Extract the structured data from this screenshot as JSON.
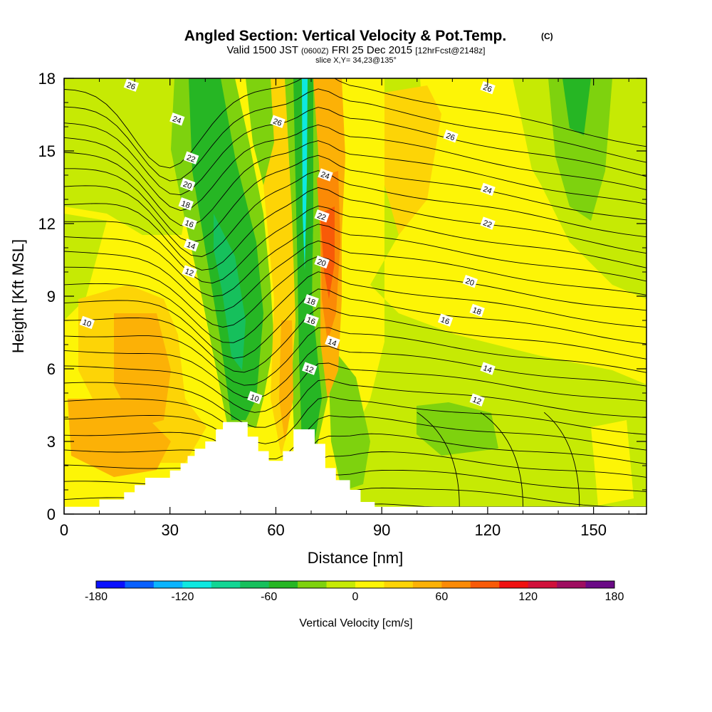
{
  "header": {
    "title": "Angled Section: Vertical Velocity & Pot.Temp.",
    "title_suffix": "(C)",
    "valid_prefix": "Valid 1500 JST",
    "valid_utc": "(0600Z)",
    "valid_date": "FRI 25 Dec 2015",
    "forecast": "[12hrFcst@2148z]",
    "slice": "slice X,Y= 34,23@135°"
  },
  "chart_data": {
    "type": "heatmap",
    "xlabel": "Distance [nm]",
    "ylabel": "Height [Kft MSL]",
    "xlim": [
      0,
      165
    ],
    "ylim": [
      0,
      18
    ],
    "x_ticks": [
      0,
      30,
      60,
      90,
      120,
      150
    ],
    "x_tick_labels": [
      "0",
      "30",
      "60",
      "90",
      "120",
      "150"
    ],
    "y_ticks": [
      0,
      3,
      6,
      9,
      12,
      15,
      18
    ],
    "y_tick_labels": [
      "0",
      "3",
      "6",
      "9",
      "12",
      "15",
      "18"
    ],
    "colorbar": {
      "label": "Vertical Velocity [cm/s]",
      "range": [
        -180,
        180
      ],
      "ticks": [
        -180,
        -120,
        -60,
        0,
        60,
        120,
        180
      ],
      "tick_labels": [
        "-180",
        "-120",
        "-60",
        "0",
        "60",
        "120",
        "180"
      ],
      "colors": [
        "#0a10ff",
        "#0860ff",
        "#0ab4ff",
        "#0ee8e0",
        "#12d694",
        "#16c05c",
        "#26b624",
        "#7ed20e",
        "#c6ea04",
        "#fdf506",
        "#fdd406",
        "#fcb106",
        "#fb8a06",
        "#f85a08",
        "#f01010",
        "#d0103a",
        "#9e0e60",
        "#6a0a86"
      ]
    },
    "terrain": [
      {
        "x": 0,
        "h": 0.3
      },
      {
        "x": 10,
        "h": 0.3
      },
      {
        "x": 10,
        "h": 0.6
      },
      {
        "x": 17,
        "h": 0.6
      },
      {
        "x": 17,
        "h": 0.9
      },
      {
        "x": 20,
        "h": 0.9
      },
      {
        "x": 20,
        "h": 1.2
      },
      {
        "x": 23,
        "h": 1.2
      },
      {
        "x": 23,
        "h": 1.5
      },
      {
        "x": 30,
        "h": 1.5
      },
      {
        "x": 30,
        "h": 1.8
      },
      {
        "x": 33,
        "h": 1.8
      },
      {
        "x": 33,
        "h": 2.1
      },
      {
        "x": 35,
        "h": 2.1
      },
      {
        "x": 35,
        "h": 2.4
      },
      {
        "x": 37,
        "h": 2.4
      },
      {
        "x": 37,
        "h": 2.7
      },
      {
        "x": 40,
        "h": 2.7
      },
      {
        "x": 40,
        "h": 3.0
      },
      {
        "x": 43,
        "h": 3.0
      },
      {
        "x": 43,
        "h": 3.5
      },
      {
        "x": 45,
        "h": 3.5
      },
      {
        "x": 45,
        "h": 3.8
      },
      {
        "x": 52,
        "h": 3.8
      },
      {
        "x": 52,
        "h": 3.2
      },
      {
        "x": 55,
        "h": 3.2
      },
      {
        "x": 55,
        "h": 2.6
      },
      {
        "x": 58,
        "h": 2.6
      },
      {
        "x": 58,
        "h": 2.2
      },
      {
        "x": 62,
        "h": 2.2
      },
      {
        "x": 62,
        "h": 2.6
      },
      {
        "x": 65,
        "h": 2.6
      },
      {
        "x": 65,
        "h": 3.5
      },
      {
        "x": 71,
        "h": 3.5
      },
      {
        "x": 71,
        "h": 2.9
      },
      {
        "x": 74,
        "h": 2.9
      },
      {
        "x": 74,
        "h": 1.9
      },
      {
        "x": 77,
        "h": 1.9
      },
      {
        "x": 77,
        "h": 1.4
      },
      {
        "x": 81,
        "h": 1.4
      },
      {
        "x": 81,
        "h": 1.0
      },
      {
        "x": 84,
        "h": 1.0
      },
      {
        "x": 84,
        "h": 0.5
      },
      {
        "x": 88,
        "h": 0.5
      },
      {
        "x": 88,
        "h": 0.3
      },
      {
        "x": 165,
        "h": 0.3
      }
    ],
    "contour_labels": [
      {
        "text": "26",
        "x": 19,
        "y": 17.7
      },
      {
        "text": "24",
        "x": 32,
        "y": 16.3
      },
      {
        "text": "22",
        "x": 36,
        "y": 14.7
      },
      {
        "text": "20",
        "x": 35,
        "y": 13.6
      },
      {
        "text": "18",
        "x": 34.5,
        "y": 12.8
      },
      {
        "text": "16",
        "x": 35.5,
        "y": 12.0
      },
      {
        "text": "14",
        "x": 36,
        "y": 11.1
      },
      {
        "text": "12",
        "x": 35.5,
        "y": 10.0
      },
      {
        "text": "10",
        "x": 6.5,
        "y": 7.9
      },
      {
        "text": "10",
        "x": 54,
        "y": 4.8
      },
      {
        "text": "26",
        "x": 60.5,
        "y": 16.2
      },
      {
        "text": "24",
        "x": 74,
        "y": 14.0
      },
      {
        "text": "22",
        "x": 73,
        "y": 12.3
      },
      {
        "text": "20",
        "x": 73,
        "y": 10.4
      },
      {
        "text": "18",
        "x": 70,
        "y": 8.8
      },
      {
        "text": "16",
        "x": 70,
        "y": 8.0
      },
      {
        "text": "14",
        "x": 76,
        "y": 7.1
      },
      {
        "text": "12",
        "x": 69.5,
        "y": 6.0
      },
      {
        "text": "26",
        "x": 120,
        "y": 17.6
      },
      {
        "text": "26",
        "x": 109.5,
        "y": 15.6
      },
      {
        "text": "24",
        "x": 120,
        "y": 13.4
      },
      {
        "text": "22",
        "x": 120,
        "y": 12.0
      },
      {
        "text": "20",
        "x": 115,
        "y": 9.6
      },
      {
        "text": "18",
        "x": 117,
        "y": 8.4
      },
      {
        "text": "16",
        "x": 108,
        "y": 8.0
      },
      {
        "text": "14",
        "x": 120,
        "y": 6.0
      },
      {
        "text": "12",
        "x": 117,
        "y": 4.7
      }
    ]
  }
}
